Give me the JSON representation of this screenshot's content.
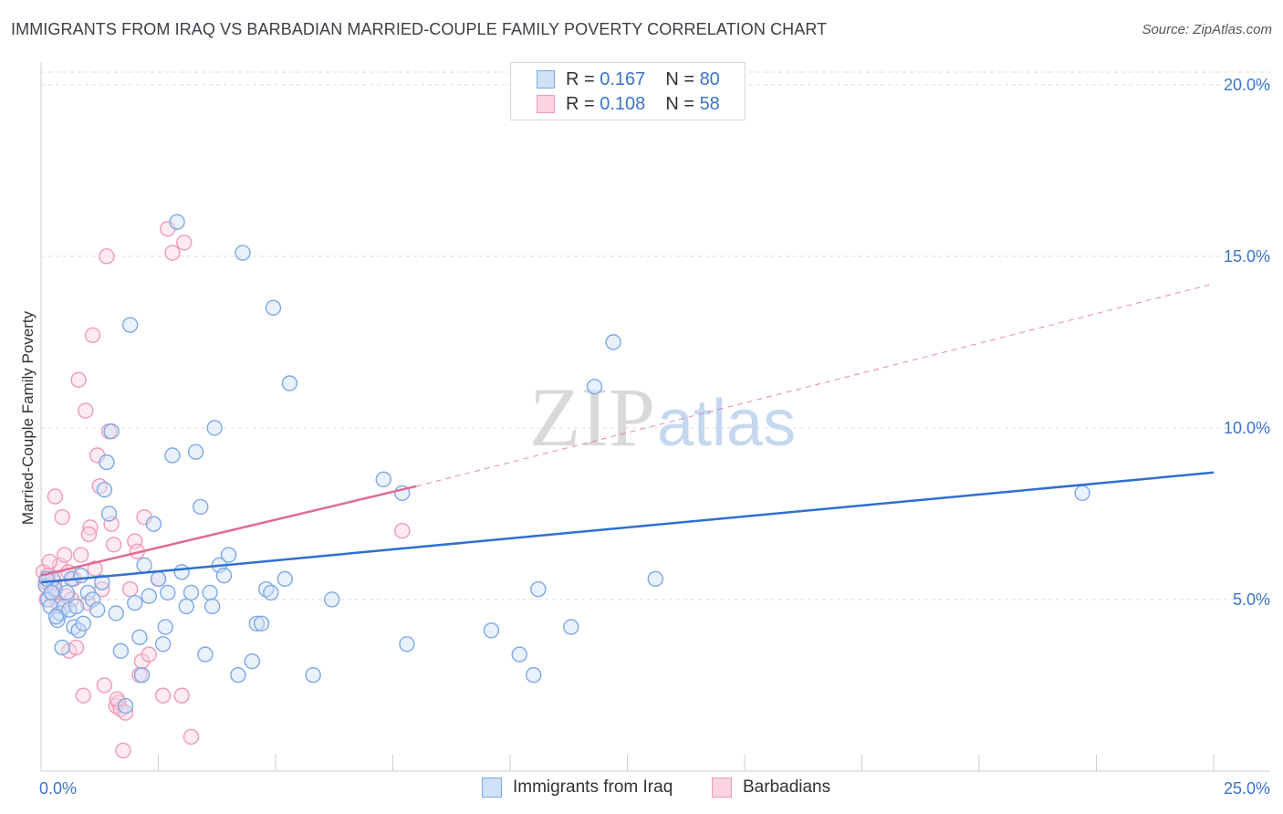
{
  "title": "IMMIGRANTS FROM IRAQ VS BARBADIAN MARRIED-COUPLE FAMILY POVERTY CORRELATION CHART",
  "source": "Source: ZipAtlas.com",
  "watermark": {
    "zip": "ZIP",
    "atlas": "atlas"
  },
  "legend": {
    "rows": [
      {
        "r_label": "R =",
        "r_value": "0.167",
        "n_label": "N =",
        "n_value": "80",
        "color": "#7ea8e6"
      },
      {
        "r_label": "R =",
        "r_value": "0.108",
        "n_label": "N =",
        "n_value": "58",
        "color": "#f09ab8"
      }
    ]
  },
  "chart_data": {
    "type": "scatter",
    "title": "IMMIGRANTS FROM IRAQ VS BARBADIAN MARRIED-COUPLE FAMILY POVERTY CORRELATION CHART",
    "xlabel": "",
    "ylabel": "Married-Couple Family Poverty",
    "xlim": [
      0,
      25
    ],
    "ylim": [
      0,
      20.5
    ],
    "x_tick_labels": [
      "0.0%",
      "25.0%"
    ],
    "y_ticks": [
      5,
      10,
      15,
      20
    ],
    "y_tick_labels": [
      "5.0%",
      "10.0%",
      "15.0%",
      "20.0%"
    ],
    "grid": "horizontal dashed",
    "legend_position": "top-center",
    "series": [
      {
        "name": "Immigrants from Iraq",
        "color": "#7ea8e6",
        "line_color": "#2f6fd0",
        "trend": {
          "x0": 0,
          "y0": 5.5,
          "x1": 25,
          "y1": 8.7
        },
        "points": [
          [
            0.1,
            5.4
          ],
          [
            0.15,
            5.0
          ],
          [
            0.2,
            4.8
          ],
          [
            0.25,
            5.6
          ],
          [
            0.3,
            5.3
          ],
          [
            0.35,
            4.4
          ],
          [
            0.4,
            4.6
          ],
          [
            0.45,
            3.6
          ],
          [
            0.5,
            4.8
          ],
          [
            0.55,
            5.2
          ],
          [
            0.6,
            4.7
          ],
          [
            0.65,
            5.6
          ],
          [
            0.7,
            4.2
          ],
          [
            0.75,
            4.8
          ],
          [
            0.8,
            4.1
          ],
          [
            0.85,
            5.7
          ],
          [
            0.9,
            4.3
          ],
          [
            1.0,
            5.2
          ],
          [
            1.1,
            5.0
          ],
          [
            1.2,
            4.7
          ],
          [
            1.3,
            5.5
          ],
          [
            1.35,
            8.2
          ],
          [
            1.4,
            9.0
          ],
          [
            1.45,
            7.5
          ],
          [
            1.5,
            9.9
          ],
          [
            1.6,
            4.6
          ],
          [
            1.7,
            3.5
          ],
          [
            1.8,
            1.9
          ],
          [
            1.9,
            13.0
          ],
          [
            2.0,
            4.9
          ],
          [
            2.1,
            3.9
          ],
          [
            2.15,
            2.8
          ],
          [
            2.2,
            6.0
          ],
          [
            2.3,
            5.1
          ],
          [
            2.4,
            7.2
          ],
          [
            2.5,
            5.6
          ],
          [
            2.6,
            3.7
          ],
          [
            2.65,
            4.2
          ],
          [
            2.7,
            5.2
          ],
          [
            2.8,
            9.2
          ],
          [
            2.9,
            16.0
          ],
          [
            3.0,
            5.8
          ],
          [
            3.1,
            4.8
          ],
          [
            3.2,
            5.2
          ],
          [
            3.3,
            9.3
          ],
          [
            3.4,
            7.7
          ],
          [
            3.5,
            3.4
          ],
          [
            3.6,
            5.2
          ],
          [
            3.65,
            4.8
          ],
          [
            3.7,
            10.0
          ],
          [
            3.8,
            6.0
          ],
          [
            3.9,
            5.7
          ],
          [
            4.0,
            6.3
          ],
          [
            4.2,
            2.8
          ],
          [
            4.3,
            15.1
          ],
          [
            4.5,
            3.2
          ],
          [
            4.6,
            4.3
          ],
          [
            4.7,
            4.3
          ],
          [
            4.8,
            5.3
          ],
          [
            4.9,
            5.2
          ],
          [
            4.95,
            13.5
          ],
          [
            5.2,
            5.6
          ],
          [
            5.3,
            11.3
          ],
          [
            5.8,
            2.8
          ],
          [
            6.2,
            5.0
          ],
          [
            7.3,
            8.5
          ],
          [
            7.7,
            8.1
          ],
          [
            7.8,
            3.7
          ],
          [
            9.6,
            4.1
          ],
          [
            10.2,
            3.4
          ],
          [
            10.5,
            2.8
          ],
          [
            10.6,
            5.3
          ],
          [
            11.3,
            4.2
          ],
          [
            11.8,
            11.2
          ],
          [
            12.2,
            12.5
          ],
          [
            13.1,
            5.6
          ],
          [
            22.2,
            8.1
          ],
          [
            0.12,
            5.6
          ],
          [
            0.22,
            5.2
          ],
          [
            0.32,
            4.5
          ]
        ]
      },
      {
        "name": "Barbadians",
        "color": "#f09ab8",
        "line_color": "#e06b93",
        "trend": {
          "x0": 0,
          "y0": 5.7,
          "x1": 8.0,
          "y1": 8.3
        },
        "trend_ext": {
          "x0": 8.0,
          "y0": 8.3,
          "x1": 25,
          "y1": 14.2
        },
        "points": [
          [
            0.05,
            5.8
          ],
          [
            0.1,
            5.5
          ],
          [
            0.12,
            5.0
          ],
          [
            0.15,
            5.7
          ],
          [
            0.2,
            5.4
          ],
          [
            0.25,
            5.2
          ],
          [
            0.3,
            8.0
          ],
          [
            0.35,
            4.9
          ],
          [
            0.4,
            6.0
          ],
          [
            0.45,
            7.4
          ],
          [
            0.5,
            6.3
          ],
          [
            0.55,
            5.1
          ],
          [
            0.6,
            3.5
          ],
          [
            0.65,
            5.0
          ],
          [
            0.7,
            5.6
          ],
          [
            0.75,
            3.6
          ],
          [
            0.8,
            11.4
          ],
          [
            0.85,
            6.3
          ],
          [
            0.9,
            2.2
          ],
          [
            0.95,
            10.5
          ],
          [
            1.0,
            4.9
          ],
          [
            1.05,
            7.1
          ],
          [
            1.1,
            12.7
          ],
          [
            1.15,
            5.9
          ],
          [
            1.2,
            9.2
          ],
          [
            1.25,
            8.3
          ],
          [
            1.3,
            5.3
          ],
          [
            1.35,
            2.5
          ],
          [
            1.4,
            15.0
          ],
          [
            1.45,
            9.9
          ],
          [
            1.5,
            7.2
          ],
          [
            1.55,
            6.6
          ],
          [
            1.6,
            1.9
          ],
          [
            1.65,
            2.0
          ],
          [
            1.7,
            1.8
          ],
          [
            1.75,
            0.6
          ],
          [
            1.8,
            1.7
          ],
          [
            1.9,
            5.3
          ],
          [
            2.0,
            6.7
          ],
          [
            2.05,
            6.4
          ],
          [
            2.1,
            2.8
          ],
          [
            2.15,
            3.2
          ],
          [
            2.2,
            7.4
          ],
          [
            2.3,
            3.4
          ],
          [
            2.5,
            5.6
          ],
          [
            2.6,
            2.2
          ],
          [
            2.7,
            15.8
          ],
          [
            2.8,
            15.1
          ],
          [
            3.0,
            2.2
          ],
          [
            3.05,
            15.4
          ],
          [
            3.2,
            1.0
          ],
          [
            7.7,
            7.0
          ],
          [
            0.18,
            6.1
          ],
          [
            0.28,
            5.5
          ],
          [
            0.38,
            4.8
          ],
          [
            0.58,
            5.8
          ],
          [
            1.02,
            6.9
          ],
          [
            1.62,
            2.1
          ]
        ]
      }
    ]
  },
  "bottom_legend": [
    {
      "label": "Immigrants from Iraq",
      "color": "#7ea8e6"
    },
    {
      "label": "Barbadians",
      "color": "#f09ab8"
    }
  ]
}
